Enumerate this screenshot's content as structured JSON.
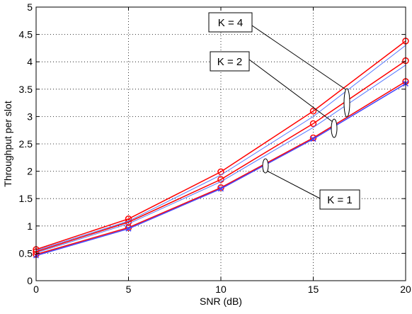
{
  "chart_data": {
    "type": "line",
    "title": "",
    "xlabel": "SNR (dB)",
    "ylabel": "Throughput per slot",
    "xlim": [
      0,
      20
    ],
    "ylim": [
      0,
      5
    ],
    "xticks": [
      "0",
      "5",
      "10",
      "15",
      "20"
    ],
    "yticks": [
      "0",
      "0.5",
      "1",
      "1.5",
      "2",
      "2.5",
      "3",
      "3.5",
      "4",
      "4.5",
      "5"
    ],
    "grid": true,
    "x": [
      0,
      5,
      10,
      15,
      20
    ],
    "series": [
      {
        "group": "K=1",
        "color": "#ff0000",
        "marker": "circle",
        "values": [
          0.48,
          0.97,
          1.7,
          2.61,
          3.64
        ]
      },
      {
        "group": "K=1",
        "color": "#4444ff",
        "marker": "cross",
        "values": [
          0.46,
          0.95,
          1.68,
          2.59,
          3.6
        ]
      },
      {
        "group": "K=2",
        "color": "#ff0000",
        "marker": "circle",
        "values": [
          0.53,
          1.07,
          1.85,
          2.87,
          4.02
        ]
      },
      {
        "group": "K=2",
        "color": "#5577ff",
        "marker": "none",
        "values": [
          0.51,
          1.04,
          1.81,
          2.8,
          3.94
        ]
      },
      {
        "group": "K=4",
        "color": "#ff0000",
        "marker": "circle",
        "values": [
          0.57,
          1.13,
          1.99,
          3.1,
          4.38
        ]
      },
      {
        "group": "K=4",
        "color": "#5577ff",
        "marker": "none",
        "values": [
          0.55,
          1.09,
          1.93,
          3.0,
          4.3
        ]
      }
    ],
    "annotations": [
      {
        "id": "k4",
        "label": "K = 4"
      },
      {
        "id": "k2",
        "label": "K = 2"
      },
      {
        "id": "k1",
        "label": "K = 1"
      }
    ]
  }
}
